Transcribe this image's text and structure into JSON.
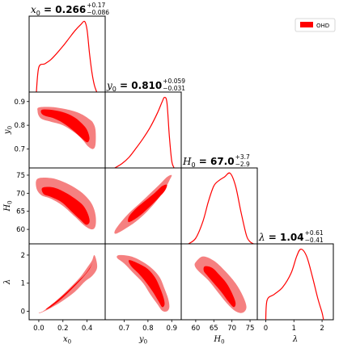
{
  "chart_data": {
    "type": "corner",
    "legend": {
      "label": "OHD",
      "color": "#ff0000",
      "placement": "top-right"
    },
    "colors": {
      "line": "#ff0000",
      "inner_contour": "#ff0000",
      "outer_contour": "#f58080"
    },
    "parameters": [
      {
        "key": "x0",
        "label": "x_0",
        "range": [
          -0.08,
          0.55
        ],
        "ticks": [
          0.0,
          0.2,
          0.4
        ],
        "tick_labels": [
          "0.0",
          "0.2",
          "0.4"
        ],
        "title_symbol": "x",
        "title_sub": "0",
        "title_value": "0.266",
        "title_plus": "+0.17",
        "title_minus": "−0.086",
        "marginal": [
          [
            -0.02,
            0.0
          ],
          [
            0.0,
            0.35
          ],
          [
            0.05,
            0.4
          ],
          [
            0.1,
            0.46
          ],
          [
            0.15,
            0.55
          ],
          [
            0.2,
            0.65
          ],
          [
            0.25,
            0.76
          ],
          [
            0.3,
            0.87
          ],
          [
            0.35,
            0.96
          ],
          [
            0.38,
            1.0
          ],
          [
            0.4,
            0.88
          ],
          [
            0.42,
            0.55
          ],
          [
            0.44,
            0.28
          ],
          [
            0.46,
            0.1
          ],
          [
            0.48,
            0.0
          ]
        ]
      },
      {
        "key": "y0",
        "label": "y_0",
        "range": [
          0.62,
          0.94
        ],
        "ticks": [
          0.7,
          0.8,
          0.9
        ],
        "tick_labels": [
          "0.7",
          "0.8",
          "0.9"
        ],
        "title_symbol": "y",
        "title_sub": "0",
        "title_value": "0.810",
        "title_plus": "+0.059",
        "title_minus": "−0.031",
        "marginal": [
          [
            0.66,
            0.0
          ],
          [
            0.69,
            0.06
          ],
          [
            0.72,
            0.15
          ],
          [
            0.75,
            0.28
          ],
          [
            0.78,
            0.42
          ],
          [
            0.81,
            0.58
          ],
          [
            0.84,
            0.78
          ],
          [
            0.86,
            0.94
          ],
          [
            0.87,
            1.0
          ],
          [
            0.88,
            0.92
          ],
          [
            0.89,
            0.45
          ],
          [
            0.9,
            0.1
          ],
          [
            0.91,
            0.0
          ]
        ]
      },
      {
        "key": "H0",
        "label": "H_0",
        "range": [
          56,
          77
        ],
        "ticks": [
          60,
          65,
          70,
          75
        ],
        "tick_labels": [
          "60",
          "65",
          "70",
          "75"
        ],
        "title_symbol": "H",
        "title_sub": "0",
        "title_value": "67.0",
        "title_plus": "+3.7",
        "title_minus": "−2.9",
        "marginal": [
          [
            58,
            0.0
          ],
          [
            60,
            0.08
          ],
          [
            62,
            0.32
          ],
          [
            63.5,
            0.6
          ],
          [
            65,
            0.82
          ],
          [
            66.5,
            0.9
          ],
          [
            68,
            0.95
          ],
          [
            69.5,
            1.0
          ],
          [
            71,
            0.82
          ],
          [
            72.5,
            0.45
          ],
          [
            74,
            0.12
          ],
          [
            75,
            0.03
          ],
          [
            76,
            0.0
          ]
        ]
      },
      {
        "key": "lambda",
        "label": "λ",
        "range": [
          -0.3,
          2.4
        ],
        "ticks": [
          0,
          1,
          2
        ],
        "tick_labels": [
          "0",
          "1",
          "2"
        ],
        "title_symbol": "λ",
        "title_sub": "",
        "title_value": "1.04",
        "title_plus": "+0.61",
        "title_minus": "−0.41",
        "marginal": [
          [
            0.0,
            0.0
          ],
          [
            0.05,
            0.28
          ],
          [
            0.3,
            0.36
          ],
          [
            0.6,
            0.46
          ],
          [
            0.9,
            0.66
          ],
          [
            1.1,
            0.9
          ],
          [
            1.25,
            1.0
          ],
          [
            1.45,
            0.9
          ],
          [
            1.65,
            0.62
          ],
          [
            1.85,
            0.3
          ],
          [
            2.0,
            0.1
          ],
          [
            2.05,
            0.0
          ]
        ]
      }
    ],
    "contours": [
      {
        "x": "x0",
        "y": "y0",
        "outer": [
          [
            0.0,
            0.875
          ],
          [
            0.1,
            0.877
          ],
          [
            0.2,
            0.87
          ],
          [
            0.3,
            0.858
          ],
          [
            0.36,
            0.845
          ],
          [
            0.42,
            0.825
          ],
          [
            0.45,
            0.81
          ],
          [
            0.47,
            0.78
          ],
          [
            0.47,
            0.72
          ],
          [
            0.45,
            0.7
          ],
          [
            0.41,
            0.71
          ],
          [
            0.36,
            0.74
          ],
          [
            0.3,
            0.768
          ],
          [
            0.2,
            0.8
          ],
          [
            0.1,
            0.815
          ],
          [
            0.03,
            0.825
          ],
          [
            0.0,
            0.84
          ],
          [
            -0.01,
            0.86
          ]
        ],
        "inner": [
          [
            0.03,
            0.866
          ],
          [
            0.12,
            0.864
          ],
          [
            0.22,
            0.852
          ],
          [
            0.3,
            0.832
          ],
          [
            0.36,
            0.806
          ],
          [
            0.4,
            0.78
          ],
          [
            0.42,
            0.745
          ],
          [
            0.4,
            0.728
          ],
          [
            0.35,
            0.748
          ],
          [
            0.28,
            0.78
          ],
          [
            0.2,
            0.81
          ],
          [
            0.12,
            0.83
          ],
          [
            0.05,
            0.84
          ],
          [
            0.02,
            0.852
          ]
        ]
      },
      {
        "x": "x0",
        "y": "H0",
        "outer": [
          [
            -0.01,
            74.0
          ],
          [
            0.1,
            74.2
          ],
          [
            0.2,
            73.2
          ],
          [
            0.3,
            71.5
          ],
          [
            0.38,
            69.5
          ],
          [
            0.44,
            67.0
          ],
          [
            0.47,
            64.0
          ],
          [
            0.47,
            61.0
          ],
          [
            0.44,
            60.0
          ],
          [
            0.38,
            61.0
          ],
          [
            0.3,
            63.5
          ],
          [
            0.2,
            66.5
          ],
          [
            0.1,
            68.5
          ],
          [
            0.02,
            69.5
          ],
          [
            -0.02,
            71.5
          ]
        ],
        "inner": [
          [
            0.03,
            71.5
          ],
          [
            0.12,
            71.6
          ],
          [
            0.22,
            70.2
          ],
          [
            0.3,
            68.5
          ],
          [
            0.37,
            66.5
          ],
          [
            0.41,
            64.0
          ],
          [
            0.42,
            62.0
          ],
          [
            0.39,
            61.3
          ],
          [
            0.34,
            62.8
          ],
          [
            0.27,
            65.0
          ],
          [
            0.19,
            67.5
          ],
          [
            0.1,
            69.0
          ],
          [
            0.04,
            69.8
          ]
        ]
      },
      {
        "x": "x0",
        "y": "lambda",
        "outer": [
          [
            0.0,
            -0.05
          ],
          [
            0.04,
            0.02
          ],
          [
            0.15,
            0.4
          ],
          [
            0.25,
            0.8
          ],
          [
            0.34,
            1.2
          ],
          [
            0.4,
            1.55
          ],
          [
            0.44,
            1.8
          ],
          [
            0.46,
            2.0
          ],
          [
            0.48,
            1.75
          ],
          [
            0.48,
            1.5
          ],
          [
            0.44,
            1.25
          ],
          [
            0.38,
            1.05
          ],
          [
            0.3,
            0.7
          ],
          [
            0.2,
            0.38
          ],
          [
            0.1,
            0.12
          ],
          [
            0.02,
            -0.05
          ]
        ],
        "inner": [
          [
            0.06,
            0.08
          ],
          [
            0.15,
            0.38
          ],
          [
            0.24,
            0.72
          ],
          [
            0.32,
            1.05
          ],
          [
            0.38,
            1.3
          ],
          [
            0.43,
            1.6
          ],
          [
            0.45,
            1.78
          ],
          [
            0.42,
            1.5
          ],
          [
            0.36,
            1.18
          ],
          [
            0.28,
            0.82
          ],
          [
            0.19,
            0.45
          ],
          [
            0.1,
            0.15
          ]
        ]
      },
      {
        "x": "y0",
        "y": "H0",
        "outer": [
          [
            0.665,
            58.8
          ],
          [
            0.7,
            60.0
          ],
          [
            0.75,
            62.2
          ],
          [
            0.8,
            65.2
          ],
          [
            0.84,
            68.2
          ],
          [
            0.87,
            71.0
          ],
          [
            0.89,
            73.5
          ],
          [
            0.9,
            75.0
          ],
          [
            0.88,
            74.5
          ],
          [
            0.85,
            72.5
          ],
          [
            0.81,
            70.0
          ],
          [
            0.77,
            67.5
          ],
          [
            0.72,
            64.5
          ],
          [
            0.68,
            61.5
          ],
          [
            0.66,
            59.5
          ]
        ],
        "inner": [
          [
            0.72,
            62.0
          ],
          [
            0.76,
            63.5
          ],
          [
            0.8,
            65.8
          ],
          [
            0.84,
            68.4
          ],
          [
            0.87,
            70.6
          ],
          [
            0.88,
            72.3
          ],
          [
            0.86,
            72.0
          ],
          [
            0.83,
            70.2
          ],
          [
            0.79,
            68.0
          ],
          [
            0.75,
            65.8
          ],
          [
            0.72,
            63.5
          ]
        ]
      },
      {
        "x": "y0",
        "y": "lambda",
        "outer": [
          [
            0.68,
            2.0
          ],
          [
            0.73,
            1.95
          ],
          [
            0.78,
            1.75
          ],
          [
            0.82,
            1.5
          ],
          [
            0.85,
            1.2
          ],
          [
            0.87,
            0.8
          ],
          [
            0.885,
            0.45
          ],
          [
            0.89,
            0.15
          ],
          [
            0.88,
            0.0
          ],
          [
            0.86,
            0.02
          ],
          [
            0.84,
            0.25
          ],
          [
            0.81,
            0.6
          ],
          [
            0.78,
            1.0
          ],
          [
            0.74,
            1.35
          ],
          [
            0.7,
            1.7
          ],
          [
            0.67,
            1.9
          ]
        ],
        "inner": [
          [
            0.72,
            1.82
          ],
          [
            0.76,
            1.7
          ],
          [
            0.8,
            1.5
          ],
          [
            0.83,
            1.2
          ],
          [
            0.85,
            0.85
          ],
          [
            0.865,
            0.5
          ],
          [
            0.87,
            0.25
          ],
          [
            0.86,
            0.15
          ],
          [
            0.845,
            0.35
          ],
          [
            0.82,
            0.7
          ],
          [
            0.79,
            1.05
          ],
          [
            0.76,
            1.35
          ],
          [
            0.73,
            1.6
          ]
        ]
      },
      {
        "x": "H0",
        "y": "lambda",
        "outer": [
          [
            60.0,
            1.75
          ],
          [
            62.0,
            1.95
          ],
          [
            65.0,
            1.8
          ],
          [
            68.0,
            1.45
          ],
          [
            71.0,
            1.0
          ],
          [
            73.0,
            0.55
          ],
          [
            74.0,
            0.15
          ],
          [
            73.0,
            -0.05
          ],
          [
            71.0,
            0.0
          ],
          [
            68.5,
            0.3
          ],
          [
            66.0,
            0.7
          ],
          [
            63.5,
            1.1
          ],
          [
            61.0,
            1.4
          ],
          [
            59.8,
            1.6
          ]
        ],
        "inner": [
          [
            62.5,
            1.6
          ],
          [
            64.5,
            1.55
          ],
          [
            66.5,
            1.3
          ],
          [
            68.5,
            1.0
          ],
          [
            70.0,
            0.65
          ],
          [
            71.0,
            0.3
          ],
          [
            70.5,
            0.15
          ],
          [
            69.0,
            0.35
          ],
          [
            67.0,
            0.7
          ],
          [
            65.0,
            1.0
          ],
          [
            63.0,
            1.3
          ],
          [
            62.2,
            1.45
          ]
        ]
      }
    ]
  }
}
